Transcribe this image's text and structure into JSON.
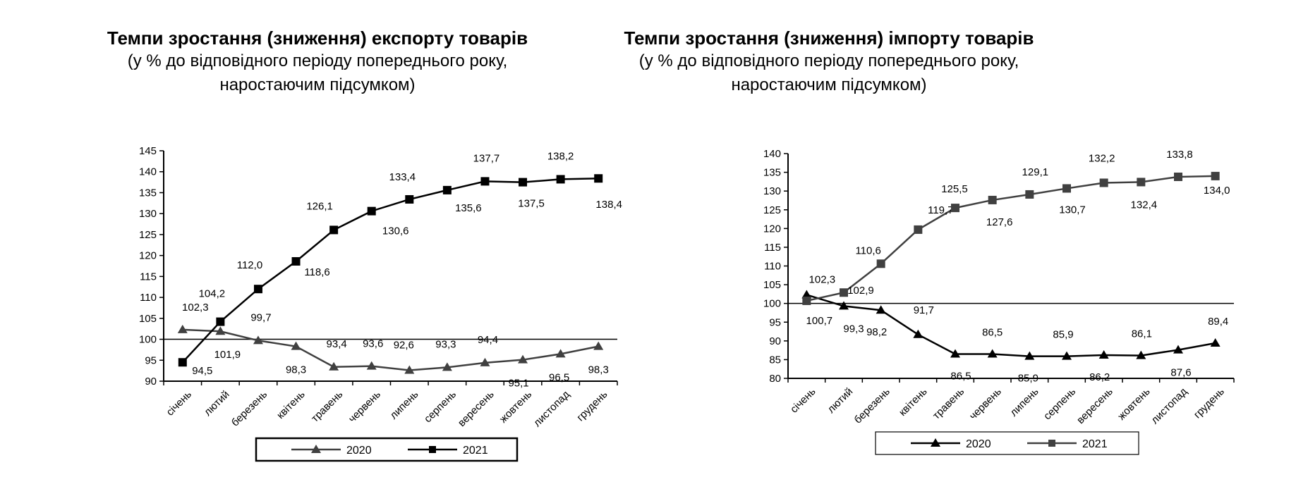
{
  "chart_data": [
    {
      "type": "line",
      "title": "Темпи зростання (зниження) експорту товарів",
      "subtitle_line1": "(у % до відповідного періоду попереднього року,",
      "subtitle_line2": "наростаючим підсумком)",
      "categories": [
        "січень",
        "лютий",
        "березень",
        "квітень",
        "травень",
        "червень",
        "липень",
        "серпень",
        "вересень",
        "жовтень",
        "листопад",
        "грудень"
      ],
      "ylim": [
        90,
        145
      ],
      "yticks": [
        90,
        95,
        100,
        105,
        110,
        115,
        120,
        125,
        130,
        135,
        140,
        145
      ],
      "reference_line": 100,
      "series": [
        {
          "name": "2020",
          "marker": "triangle",
          "color": "#404040",
          "values": [
            102.3,
            101.9,
            99.7,
            98.3,
            93.4,
            93.6,
            92.6,
            93.3,
            94.4,
            95.1,
            96.5,
            98.3
          ],
          "labels": [
            "102,3",
            "101,9",
            "99,7",
            "98,3",
            "93,4",
            "93,6",
            "92,6",
            "93,3",
            "94,4",
            "95,1",
            "96,5",
            "98,3"
          ]
        },
        {
          "name": "2021",
          "marker": "square",
          "color": "#000000",
          "values": [
            94.5,
            104.2,
            112.0,
            118.6,
            126.1,
            130.6,
            133.4,
            135.6,
            137.7,
            137.5,
            138.2,
            138.4
          ],
          "labels": [
            "94,5",
            "104,2",
            "112,0",
            "118,6",
            "126,1",
            "130,6",
            "133,4",
            "135,6",
            "137,7",
            "137,5",
            "138,2",
            "138,4"
          ]
        }
      ]
    },
    {
      "type": "line",
      "title": "Темпи зростання (зниження) імпорту товарів",
      "subtitle_line1": "(у % до відповідного періоду попереднього року,",
      "subtitle_line2": "наростаючим підсумком)",
      "categories": [
        "січень",
        "лютий",
        "березень",
        "квітень",
        "травень",
        "червень",
        "липень",
        "серпень",
        "вересень",
        "жовтень",
        "листопад",
        "грудень"
      ],
      "ylim": [
        80,
        140
      ],
      "yticks": [
        80,
        85,
        90,
        95,
        100,
        105,
        110,
        115,
        120,
        125,
        130,
        135,
        140
      ],
      "reference_line": 100,
      "series": [
        {
          "name": "2020",
          "marker": "triangle",
          "color": "#000000",
          "values": [
            102.3,
            99.3,
            98.2,
            91.7,
            86.5,
            86.5,
            85.9,
            85.9,
            86.2,
            86.1,
            87.6,
            89.4
          ],
          "labels": [
            "102,3",
            "99,3",
            "98,2",
            "91,7",
            "86,5",
            "86,5",
            "85,9",
            "85,9",
            "86,2",
            "86,1",
            "87,6",
            "89,4"
          ]
        },
        {
          "name": "2021",
          "marker": "square",
          "color": "#404040",
          "values": [
            100.7,
            102.9,
            110.6,
            119.7,
            125.5,
            127.6,
            129.1,
            130.7,
            132.2,
            132.4,
            133.8,
            134.0
          ],
          "labels": [
            "100,7",
            "102,9",
            "110,6",
            "119,7",
            "125,5",
            "127,6",
            "129,1",
            "130,7",
            "132,2",
            "132,4",
            "133,8",
            "134,0"
          ]
        }
      ]
    }
  ]
}
